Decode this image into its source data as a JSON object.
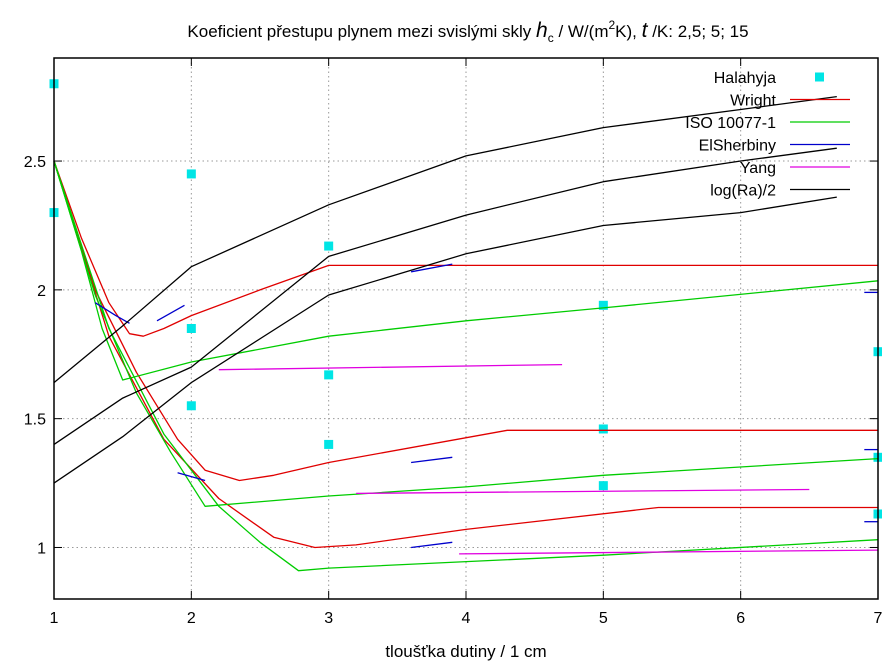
{
  "chart_data": {
    "type": "scatter",
    "title_prefix": "Koeficient přestupu plynem mezi svislými skly ",
    "title_h": "h",
    "title_h_sub": "c",
    "title_mid": " / W/(m",
    "title_sup": "2",
    "title_mid2": "K), ",
    "title_t": "t",
    "title_suffix": " /K: 2,5; 5; 15",
    "xlabel": "tloušťka dutiny / 1 cm",
    "ylabel": "",
    "xlim": [
      1,
      7
    ],
    "ylim": [
      0.8,
      2.9
    ],
    "x_ticks": [
      1,
      2,
      3,
      4,
      5,
      6,
      7
    ],
    "x_tick_labels": [
      "1",
      "2",
      "3",
      "4",
      "5",
      "6",
      "7"
    ],
    "y_ticks": [
      1,
      1.5,
      2,
      2.5
    ],
    "y_tick_labels": [
      "1",
      "1.5",
      "2",
      "2.5"
    ],
    "grid": true,
    "legend_position": "top-right",
    "series": [
      {
        "name": "Halahyja",
        "color": "#00e5e5",
        "kind": "points",
        "points": [
          [
            1,
            2.8
          ],
          [
            1,
            2.3
          ],
          [
            2,
            2.45
          ],
          [
            2,
            1.85
          ],
          [
            2,
            1.55
          ],
          [
            3,
            2.17
          ],
          [
            3,
            1.67
          ],
          [
            3,
            1.4
          ],
          [
            5,
            1.94
          ],
          [
            5,
            1.46
          ],
          [
            5,
            1.24
          ],
          [
            7,
            1.76
          ],
          [
            7,
            1.35
          ],
          [
            7,
            1.13
          ]
        ]
      },
      {
        "name": "Wright",
        "color": "#e00000",
        "kind": "lines",
        "lines": [
          [
            [
              1,
              2.5
            ],
            [
              1.2,
              2.2
            ],
            [
              1.4,
              1.95
            ],
            [
              1.55,
              1.83
            ],
            [
              1.65,
              1.82
            ],
            [
              1.8,
              1.85
            ],
            [
              2,
              1.9
            ],
            [
              2.5,
              2.0
            ],
            [
              3,
              2.095
            ],
            [
              7,
              2.095
            ]
          ],
          [
            [
              1,
              2.5
            ],
            [
              1.3,
              2.0
            ],
            [
              1.6,
              1.68
            ],
            [
              1.9,
              1.42
            ],
            [
              2.1,
              1.3
            ],
            [
              2.35,
              1.26
            ],
            [
              2.6,
              1.28
            ],
            [
              3,
              1.33
            ],
            [
              4.3,
              1.455
            ],
            [
              7,
              1.455
            ]
          ],
          [
            [
              1,
              2.5
            ],
            [
              1.4,
              1.82
            ],
            [
              1.8,
              1.42
            ],
            [
              2.2,
              1.19
            ],
            [
              2.6,
              1.04
            ],
            [
              2.9,
              1.0
            ],
            [
              3.2,
              1.01
            ],
            [
              4,
              1.07
            ],
            [
              5.4,
              1.155
            ],
            [
              7,
              1.155
            ]
          ]
        ]
      },
      {
        "name": "ISO 10077-1",
        "color": "#00cc00",
        "kind": "lines",
        "lines": [
          [
            [
              1,
              2.5
            ],
            [
              1.2,
              2.15
            ],
            [
              1.35,
              1.85
            ],
            [
              1.5,
              1.65
            ],
            [
              2,
              1.72
            ],
            [
              3,
              1.82
            ],
            [
              4,
              1.88
            ],
            [
              5,
              1.93
            ],
            [
              7,
              2.035
            ]
          ],
          [
            [
              1,
              2.5
            ],
            [
              1.3,
              1.98
            ],
            [
              1.6,
              1.6
            ],
            [
              1.85,
              1.37
            ],
            [
              2.1,
              1.16
            ],
            [
              3,
              1.2
            ],
            [
              4,
              1.235
            ],
            [
              5,
              1.28
            ],
            [
              7,
              1.345
            ]
          ],
          [
            [
              1,
              2.5
            ],
            [
              1.4,
              1.85
            ],
            [
              1.8,
              1.44
            ],
            [
              2.2,
              1.16
            ],
            [
              2.5,
              1.02
            ],
            [
              2.78,
              0.91
            ],
            [
              3,
              0.92
            ],
            [
              5,
              0.97
            ],
            [
              7,
              1.03
            ]
          ]
        ]
      },
      {
        "name": "ElSherbiny",
        "color": "#0000cc",
        "kind": "lines",
        "lines": [
          [
            [
              1.3,
              1.95
            ],
            [
              1.45,
              1.9
            ],
            [
              1.55,
              1.87
            ]
          ],
          [
            [
              1.75,
              1.88
            ],
            [
              1.95,
              1.94
            ]
          ],
          [
            [
              3.6,
              2.07
            ],
            [
              3.9,
              2.1
            ]
          ],
          [
            [
              1.9,
              1.29
            ],
            [
              2.1,
              1.26
            ]
          ],
          [
            [
              3.6,
              1.33
            ],
            [
              3.9,
              1.35
            ]
          ],
          [
            [
              3.6,
              1.0
            ],
            [
              3.9,
              1.02
            ]
          ],
          [
            [
              6.9,
              1.99
            ],
            [
              7,
              1.99
            ]
          ],
          [
            [
              6.9,
              1.38
            ],
            [
              7,
              1.38
            ]
          ],
          [
            [
              6.9,
              1.1
            ],
            [
              7,
              1.1
            ]
          ]
        ]
      },
      {
        "name": "Yang",
        "color": "#e000e0",
        "kind": "lines",
        "lines": [
          [
            [
              2.2,
              1.69
            ],
            [
              4.7,
              1.71
            ]
          ],
          [
            [
              3.2,
              1.21
            ],
            [
              6.5,
              1.225
            ]
          ],
          [
            [
              3.95,
              0.975
            ],
            [
              7,
              0.99
            ]
          ]
        ]
      },
      {
        "name": "log(Ra)/2",
        "color": "#000000",
        "kind": "lines",
        "lines": [
          [
            [
              1,
              1.64
            ],
            [
              1.5,
              1.86
            ],
            [
              2,
              2.09
            ],
            [
              3,
              2.33
            ],
            [
              4,
              2.52
            ],
            [
              5,
              2.63
            ],
            [
              6,
              2.7
            ],
            [
              6.7,
              2.75
            ]
          ],
          [
            [
              1,
              1.4
            ],
            [
              1.5,
              1.58
            ],
            [
              2,
              1.7
            ],
            [
              3,
              2.13
            ],
            [
              4,
              2.29
            ],
            [
              5,
              2.42
            ],
            [
              6,
              2.5
            ],
            [
              6.7,
              2.55
            ]
          ],
          [
            [
              1,
              1.25
            ],
            [
              1.5,
              1.43
            ],
            [
              2,
              1.64
            ],
            [
              3,
              1.98
            ],
            [
              4,
              2.14
            ],
            [
              5,
              2.25
            ],
            [
              6,
              2.3
            ],
            [
              6.7,
              2.36
            ]
          ]
        ]
      }
    ]
  }
}
